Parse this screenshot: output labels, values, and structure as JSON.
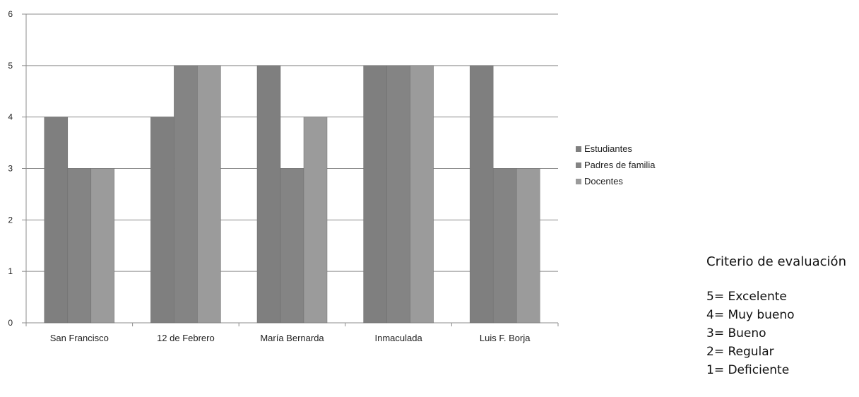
{
  "chart_data": {
    "type": "bar",
    "categories": [
      "San Francisco",
      "12 de Febrero",
      "María Bernarda",
      "Inmaculada",
      "Luis F. Borja"
    ],
    "series": [
      {
        "name": "Estudiantes",
        "values": [
          4,
          4,
          5,
          5,
          5
        ]
      },
      {
        "name": "Padres de familia",
        "values": [
          3,
          5,
          3,
          5,
          3
        ]
      },
      {
        "name": "Docentes",
        "values": [
          3,
          5,
          4,
          5,
          3
        ]
      }
    ],
    "ylim": [
      0,
      6
    ],
    "yticks": [
      0,
      1,
      2,
      3,
      4,
      5,
      6
    ],
    "grid": true,
    "legend": "right",
    "colors": [
      "#7f7f7f",
      "#848484",
      "#9b9b9b"
    ]
  },
  "criteria": {
    "title": "Criterio de evaluación",
    "items": [
      "5= Excelente",
      "4= Muy bueno",
      "3= Bueno",
      "2= Regular",
      "1= Deficiente"
    ]
  }
}
